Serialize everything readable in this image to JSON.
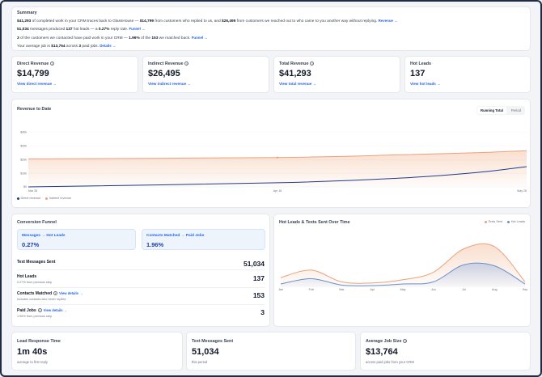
{
  "summary": {
    "title": "Summary",
    "line1": {
      "a": "$41,293",
      "b": " of completed work in your CRM traces back to GlassHouse — ",
      "c": "$14,799",
      "d": " from customers who replied to us, and ",
      "e": "$26,495",
      "f": " from customers we reached out to who came to you another way without replying.",
      "link": "Revenue →"
    },
    "line2": {
      "a": "51,034",
      "b": " messages produced ",
      "c": "137",
      "d": " hot leads — a ",
      "e": "0.27%",
      "f": " reply rate.",
      "link": "Funnel →"
    },
    "line3": {
      "a": "3",
      "b": " of the customers we contacted have paid work in your CRM — ",
      "c": "1.96%",
      "d": " of the ",
      "e": "153",
      "f": " we matched back.",
      "link": "Funnel →"
    },
    "line4": {
      "a": "Your average job is ",
      "b": "$13,764",
      "c": " across ",
      "d": "3",
      "e": " paid jobs.",
      "link": "Details →"
    }
  },
  "stats": [
    {
      "label": "Direct Revenue",
      "value": "$14,799",
      "link": "View direct revenue →",
      "info": true
    },
    {
      "label": "Indirect Revenue",
      "value": "$26,495",
      "link": "View indirect revenue →",
      "info": true
    },
    {
      "label": "Total Revenue",
      "value": "$41,293",
      "link": "View total revenue →",
      "info": true
    },
    {
      "label": "Hot Leads",
      "value": "137",
      "link": "View hot leads →",
      "info": false
    }
  ],
  "revenue_chart": {
    "title": "Revenue to Date",
    "toggle": [
      "Running Total",
      "Period"
    ],
    "legend": [
      "Direct revenue",
      "Indirect revenue"
    ]
  },
  "funnel": {
    "title": "Conversion Funnel",
    "box1": {
      "label": "Messages → Hot Leads",
      "value": "0.27%"
    },
    "box2": {
      "label": "Contacts Matched → Paid Jobs",
      "value": "1.96%"
    },
    "rows": [
      {
        "name": "Text Messages Sent",
        "sub": "",
        "value": "51,034",
        "link": ""
      },
      {
        "name": "Hot Leads",
        "sub": "0.27% from previous step",
        "value": "137",
        "link": ""
      },
      {
        "name": "Contacts Matched",
        "sub": "Includes contacts who never replied",
        "value": "153",
        "link": "View details →"
      },
      {
        "name": "Paid Jobs",
        "sub": "1.96% from previous step",
        "value": "3",
        "link": "View details →"
      }
    ]
  },
  "hot_chart": {
    "title": "Hot Leads & Texts Sent Over Time",
    "legend": [
      "Texts Sent",
      "Hot Leads"
    ]
  },
  "bottom": [
    {
      "label": "Lead Response Time",
      "value": "1m 40s",
      "sub": "average to first reply",
      "info": false
    },
    {
      "label": "Text Messages Sent",
      "value": "51,034",
      "sub": "this period",
      "info": false
    },
    {
      "label": "Average Job Size",
      "value": "$13,764",
      "sub": "across paid jobs from your CRM",
      "info": true
    }
  ],
  "colors": {
    "direct": "#1e3a8a",
    "indirect": "#e8a27c",
    "accent": "#2563eb",
    "hot": "#6b8fc9"
  },
  "chart_data": [
    {
      "type": "line",
      "title": "Revenue to Date",
      "x": [
        "Mar 26",
        "Apr 18",
        "May 28"
      ],
      "ylabels": [
        "$0",
        "$10k",
        "$20k",
        "$30k",
        "$40k"
      ],
      "ylim": [
        0,
        45000
      ],
      "series": [
        {
          "name": "Direct revenue",
          "points": [
            [
              0,
              0
            ],
            [
              0.5,
              3000
            ],
            [
              0.75,
              6500
            ],
            [
              0.9,
              10500
            ],
            [
              1,
              14799
            ]
          ]
        },
        {
          "name": "Indirect revenue",
          "points": [
            [
              0,
              20500
            ],
            [
              0.5,
              21500
            ],
            [
              0.75,
              23500
            ],
            [
              0.9,
              25000
            ],
            [
              1,
              26495
            ]
          ]
        }
      ]
    },
    {
      "type": "area",
      "title": "Hot Leads & Texts Sent Over Time",
      "x": [
        "Jan",
        "Feb",
        "Mar",
        "Apr",
        "May",
        "Jun",
        "Jul",
        "Aug",
        "Sep"
      ],
      "ylim": [
        0,
        100
      ],
      "series": [
        {
          "name": "Texts Sent",
          "values": [
            18,
            32,
            10,
            8,
            14,
            28,
            72,
            76,
            10
          ]
        },
        {
          "name": "Hot Leads",
          "values": [
            6,
            16,
            4,
            3,
            6,
            10,
            42,
            40,
            6
          ]
        }
      ]
    }
  ]
}
